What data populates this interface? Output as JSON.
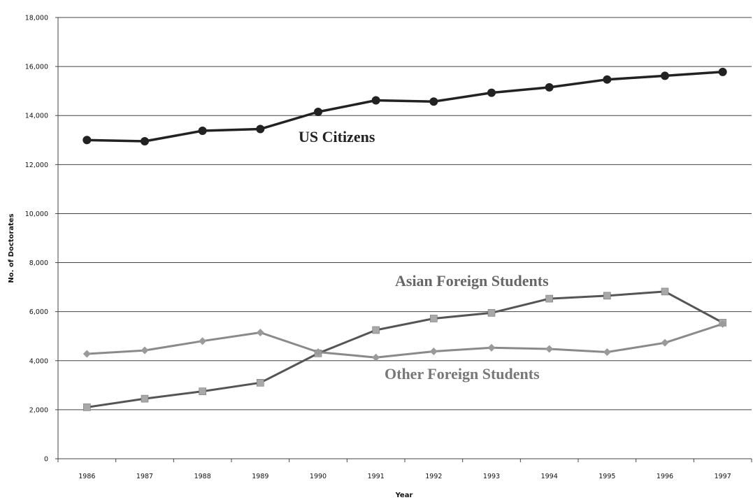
{
  "chart_data": {
    "type": "line",
    "title": "",
    "xlabel": "Year",
    "ylabel": "No. of Doctorates",
    "ylim": [
      0,
      18000
    ],
    "yticks": [
      0,
      2000,
      4000,
      6000,
      8000,
      10000,
      12000,
      14000,
      16000,
      18000
    ],
    "ytick_labels": [
      "0",
      "2,000",
      "4,000",
      "6,000",
      "8,000",
      "10,000",
      "12,000",
      "14,000",
      "16,000",
      "18,000"
    ],
    "categories": [
      "1986",
      "1987",
      "1988",
      "1989",
      "1990",
      "1991",
      "1992",
      "1993",
      "1994",
      "1995",
      "1996",
      "1997"
    ],
    "grid": "horizontal",
    "legend": "none",
    "series": [
      {
        "name": "US Citizens",
        "values": [
          13000,
          12950,
          13380,
          13450,
          14150,
          14620,
          14570,
          14930,
          15150,
          15470,
          15620,
          15780
        ],
        "color": "#222222",
        "marker": "circle"
      },
      {
        "name": "Asian Foreign Students",
        "values": [
          2100,
          2450,
          2750,
          3100,
          4300,
          5250,
          5720,
          5950,
          6530,
          6650,
          6820,
          5550
        ],
        "color": "#555555",
        "marker": "square"
      },
      {
        "name": "Other Foreign Students",
        "values": [
          4280,
          4420,
          4800,
          5150,
          4350,
          4130,
          4380,
          4530,
          4480,
          4350,
          4730,
          5500
        ],
        "color": "#8a8a8a",
        "marker": "diamond"
      }
    ]
  }
}
